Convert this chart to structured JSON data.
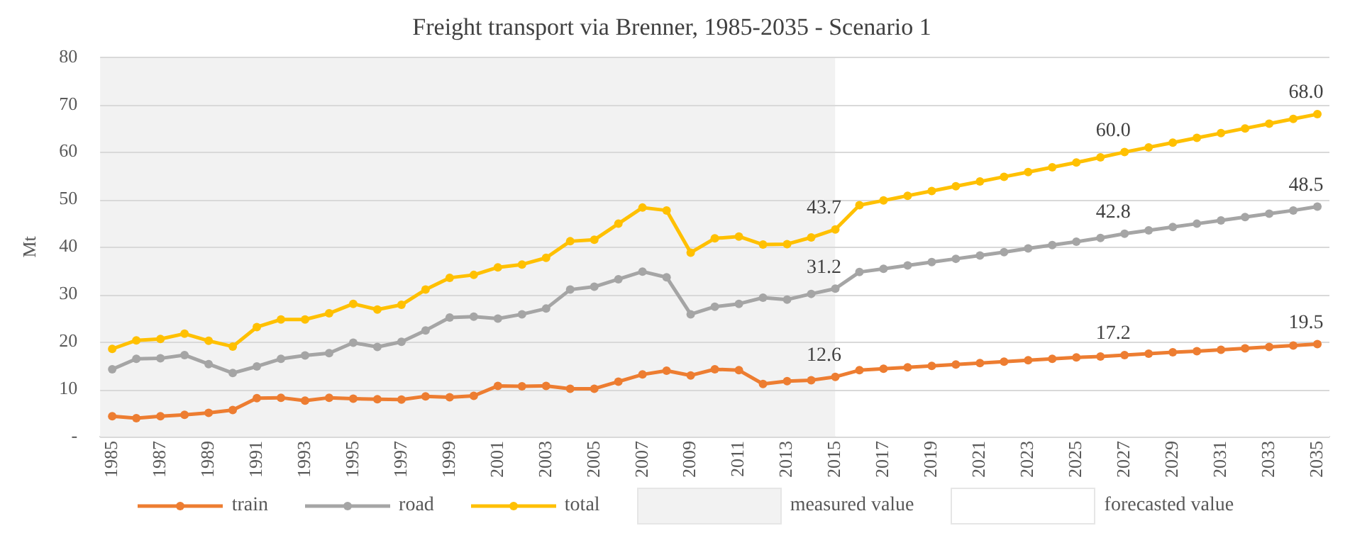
{
  "chart_data": {
    "type": "line",
    "title": "Freight transport via Brenner, 1985-2035 - Scenario 1",
    "ylabel": "Mt",
    "categories": [
      "1985",
      null,
      "1987",
      null,
      "1989",
      null,
      "1991",
      null,
      "1993",
      null,
      "1995",
      null,
      "1997",
      null,
      "1999",
      null,
      "2001",
      null,
      "2003",
      null,
      "2005",
      null,
      "2007",
      null,
      "2009",
      null,
      "2011",
      null,
      "2013",
      null,
      "2015",
      null,
      "2017",
      null,
      "2019",
      null,
      "2021",
      null,
      "2023",
      null,
      "2025",
      null,
      "2027",
      null,
      "2029",
      null,
      "2031",
      null,
      "2033",
      null,
      "2035"
    ],
    "series": [
      {
        "name": "train",
        "color": "#ed7d31",
        "values": [
          4.3,
          3.9,
          4.3,
          4.6,
          5.0,
          5.6,
          8.1,
          8.2,
          7.6,
          8.2,
          8.0,
          7.9,
          7.8,
          8.5,
          8.3,
          8.6,
          10.7,
          10.6,
          10.7,
          10.1,
          10.1,
          11.6,
          13.1,
          13.9,
          12.9,
          14.2,
          14.0,
          11.1,
          11.7,
          11.9,
          12.6,
          14.0,
          14.3,
          14.6,
          14.9,
          15.2,
          15.5,
          15.8,
          16.1,
          16.4,
          16.7,
          16.9,
          17.2,
          17.5,
          17.8,
          18.0,
          18.3,
          18.6,
          18.9,
          19.2,
          19.5
        ],
        "value_labels": [
          null,
          null,
          null,
          null,
          null,
          null,
          null,
          null,
          null,
          null,
          null,
          null,
          null,
          null,
          null,
          null,
          null,
          null,
          null,
          null,
          null,
          null,
          null,
          null,
          null,
          null,
          null,
          null,
          null,
          null,
          "12.6",
          null,
          null,
          null,
          null,
          null,
          null,
          null,
          null,
          null,
          null,
          null,
          "17.2",
          null,
          null,
          null,
          null,
          null,
          null,
          null,
          "19.5"
        ]
      },
      {
        "name": "road",
        "color": "#a5a5a5",
        "values": [
          14.2,
          16.4,
          16.5,
          17.2,
          15.3,
          13.4,
          14.8,
          16.4,
          17.1,
          17.6,
          19.8,
          18.9,
          20.0,
          22.4,
          25.1,
          25.3,
          24.9,
          25.8,
          27.0,
          31.0,
          31.6,
          33.2,
          34.8,
          33.6,
          25.8,
          27.4,
          28.0,
          29.3,
          28.9,
          30.1,
          31.2,
          34.7,
          35.4,
          36.1,
          36.8,
          37.5,
          38.2,
          38.9,
          39.7,
          40.4,
          41.1,
          41.9,
          42.8,
          43.5,
          44.2,
          44.9,
          45.6,
          46.3,
          47.0,
          47.7,
          48.5
        ],
        "value_labels": [
          null,
          null,
          null,
          null,
          null,
          null,
          null,
          null,
          null,
          null,
          null,
          null,
          null,
          null,
          null,
          null,
          null,
          null,
          null,
          null,
          null,
          null,
          null,
          null,
          null,
          null,
          null,
          null,
          null,
          null,
          "31.2",
          null,
          null,
          null,
          null,
          null,
          null,
          null,
          null,
          null,
          null,
          null,
          "42.8",
          null,
          null,
          null,
          null,
          null,
          null,
          null,
          "48.5"
        ]
      },
      {
        "name": "total",
        "color": "#ffc000",
        "values": [
          18.5,
          20.3,
          20.6,
          21.7,
          20.2,
          19.0,
          23.1,
          24.7,
          24.7,
          26.0,
          28.0,
          26.8,
          27.8,
          31.0,
          33.5,
          34.1,
          35.7,
          36.3,
          37.7,
          41.2,
          41.5,
          44.9,
          48.3,
          47.7,
          38.8,
          41.8,
          42.2,
          40.5,
          40.6,
          42.0,
          43.7,
          48.8,
          49.8,
          50.8,
          51.8,
          52.8,
          53.8,
          54.8,
          55.8,
          56.8,
          57.8,
          58.9,
          60.0,
          61.0,
          62.0,
          63.0,
          64.0,
          65.0,
          66.0,
          67.0,
          68.0
        ],
        "value_labels": [
          null,
          null,
          null,
          null,
          null,
          null,
          null,
          null,
          null,
          null,
          null,
          null,
          null,
          null,
          null,
          null,
          null,
          null,
          null,
          null,
          null,
          null,
          null,
          null,
          null,
          null,
          null,
          null,
          null,
          null,
          "43.7",
          null,
          null,
          null,
          null,
          null,
          null,
          null,
          null,
          null,
          null,
          null,
          "60.0",
          null,
          null,
          null,
          null,
          null,
          null,
          null,
          "68.0"
        ]
      }
    ],
    "bands": [
      {
        "axis": "x",
        "from": "1985",
        "to": "2015",
        "label": "measured value",
        "color": "#f2f2f2"
      },
      {
        "axis": "x",
        "from": "2015",
        "to": "2035",
        "label": "forecasted value",
        "color": "#ffffff"
      }
    ],
    "ylim": [
      0,
      80
    ],
    "yticks": [
      {
        "value": 0,
        "label": "-"
      },
      10,
      20,
      30,
      40,
      50,
      60,
      70,
      80
    ],
    "grid": "y",
    "legend": "bottom",
    "marker": "circle",
    "line_style": "solid"
  }
}
